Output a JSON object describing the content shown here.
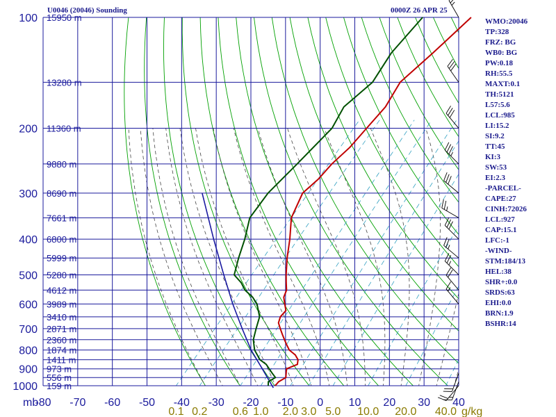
{
  "header": {
    "title": "U0046 (20046) Sounding",
    "time": "0000Z 26 APR 25"
  },
  "indices": [
    "WMO:20046",
    "TP:328",
    "FRZ: BG",
    "WB0: BG",
    "PW:0.18",
    "RH:55.5",
    "MAXT:0.1",
    "TH:5121",
    "L57:5.6",
    "LCL:985",
    "LI:15.2",
    "SI:9.2",
    "TT:45",
    "KI:3",
    "SW:53",
    "EI:2.3",
    "-PARCEL-",
    "CAPE:27",
    "CINH:72026",
    "LCL:927",
    "CAP:15.1",
    "LFC:-1",
    "-WIND-",
    "STM:184/13",
    "HEL:38",
    "SHR+:0.0",
    "SRDS:63",
    "EHI:0.0",
    "BRN:1.9",
    "BSHR:14"
  ],
  "colors": {
    "grid": "#1a1a9c",
    "dry_adiabat": "#00a000",
    "moist_adiabat": "#444444",
    "mixing_ratio": "#2f9fc0",
    "temperature": "#c00000",
    "dewpoint": "#005000",
    "parcel": "#1a1aa0",
    "axis_text": "#1a1a9c",
    "mixing_text": "#8a7a00"
  },
  "chart_data": {
    "type": "line",
    "title": "U0046 (20046) Sounding",
    "subtitle": "0000Z 26 APR 25",
    "xlabel": "",
    "ylabel": "mb",
    "xlim": [
      -80,
      40
    ],
    "ylim": [
      1000,
      100
    ],
    "y_log_scale": true,
    "grid": true,
    "x_ticks": [
      "-80",
      "-70",
      "-60",
      "-50",
      "-40",
      "-30",
      "-20",
      "-10",
      "0",
      "10",
      "20",
      "30",
      "40"
    ],
    "y_ticks": [
      "100",
      "200",
      "300",
      "400",
      "500",
      "600",
      "700",
      "800",
      "900",
      "1000"
    ],
    "height_labels": [
      {
        "p": 100,
        "label": "15950 m"
      },
      {
        "p": 150,
        "label": "13280 m"
      },
      {
        "p": 200,
        "label": "11360 m"
      },
      {
        "p": 250,
        "label": "9880 m"
      },
      {
        "p": 300,
        "label": "8690 m"
      },
      {
        "p": 350,
        "label": "7661 m"
      },
      {
        "p": 400,
        "label": "6800 m"
      },
      {
        "p": 450,
        "label": "5999 m"
      },
      {
        "p": 500,
        "label": "5280 m"
      },
      {
        "p": 550,
        "label": "4612 m"
      },
      {
        "p": 600,
        "label": "3989 m"
      },
      {
        "p": 650,
        "label": "3410 m"
      },
      {
        "p": 700,
        "label": "2871 m"
      },
      {
        "p": 750,
        "label": "2360 m"
      },
      {
        "p": 800,
        "label": "1874 m"
      },
      {
        "p": 850,
        "label": "1411 m"
      },
      {
        "p": 900,
        "label": "973 m"
      },
      {
        "p": 950,
        "label": "556 m"
      },
      {
        "p": 1000,
        "label": "159 m"
      }
    ],
    "mixing_ratio_labels": [
      "0.1",
      "0.2",
      "0.6",
      "1.0",
      "2.0",
      "3.0",
      "5.0",
      "10.0",
      "20.0",
      "40.0"
    ],
    "mixing_ratio_unit": "g/kg",
    "series": [
      {
        "key": "temperature",
        "points": [
          [
            1000,
            -13
          ],
          [
            975,
            -13
          ],
          [
            950,
            -12
          ],
          [
            925,
            -13
          ],
          [
            900,
            -14
          ],
          [
            875,
            -12
          ],
          [
            850,
            -13
          ],
          [
            825,
            -15
          ],
          [
            800,
            -18
          ],
          [
            775,
            -20
          ],
          [
            750,
            -22
          ],
          [
            725,
            -24
          ],
          [
            700,
            -26
          ],
          [
            675,
            -28
          ],
          [
            650,
            -29
          ],
          [
            625,
            -29
          ],
          [
            600,
            -31
          ],
          [
            575,
            -33
          ],
          [
            550,
            -34
          ],
          [
            525,
            -36
          ],
          [
            500,
            -38
          ],
          [
            450,
            -42
          ],
          [
            400,
            -46
          ],
          [
            350,
            -51
          ],
          [
            300,
            -54
          ],
          [
            275,
            -53
          ],
          [
            250,
            -53
          ],
          [
            225,
            -52
          ],
          [
            200,
            -52
          ],
          [
            175,
            -52
          ],
          [
            150,
            -54
          ],
          [
            125,
            -52
          ],
          [
            100,
            -50
          ]
        ]
      },
      {
        "key": "dewpoint",
        "points": [
          [
            1000,
            -15
          ],
          [
            975,
            -16
          ],
          [
            950,
            -15
          ],
          [
            925,
            -17
          ],
          [
            900,
            -19
          ],
          [
            875,
            -21
          ],
          [
            850,
            -24
          ],
          [
            800,
            -28
          ],
          [
            750,
            -31
          ],
          [
            700,
            -33
          ],
          [
            650,
            -35
          ],
          [
            600,
            -39
          ],
          [
            575,
            -42
          ],
          [
            550,
            -46
          ],
          [
            525,
            -49
          ],
          [
            500,
            -53
          ],
          [
            450,
            -56
          ],
          [
            400,
            -59
          ],
          [
            350,
            -63
          ],
          [
            300,
            -64
          ],
          [
            250,
            -63
          ],
          [
            200,
            -62
          ],
          [
            175,
            -64
          ],
          [
            150,
            -62
          ],
          [
            125,
            -64
          ],
          [
            100,
            -64
          ]
        ]
      },
      {
        "key": "parcel",
        "points": [
          [
            1013,
            -13
          ],
          [
            900,
            -21
          ],
          [
            800,
            -29
          ],
          [
            700,
            -37
          ],
          [
            600,
            -46
          ],
          [
            500,
            -56
          ],
          [
            400,
            -68
          ],
          [
            300,
            -83
          ]
        ]
      }
    ],
    "wind_barbs": [
      {
        "p": 100,
        "dir": 330,
        "spd": 25
      },
      {
        "p": 150,
        "dir": 325,
        "spd": 30
      },
      {
        "p": 200,
        "dir": 320,
        "spd": 30
      },
      {
        "p": 250,
        "dir": 315,
        "spd": 35
      },
      {
        "p": 300,
        "dir": 310,
        "spd": 30
      },
      {
        "p": 350,
        "dir": 300,
        "spd": 25
      },
      {
        "p": 400,
        "dir": 315,
        "spd": 30
      },
      {
        "p": 450,
        "dir": 310,
        "spd": 25
      },
      {
        "p": 500,
        "dir": 315,
        "spd": 25
      },
      {
        "p": 550,
        "dir": 320,
        "spd": 20
      },
      {
        "p": 600,
        "dir": 320,
        "spd": 15
      },
      {
        "p": 925,
        "dir": 200,
        "spd": 20
      },
      {
        "p": 975,
        "dir": 200,
        "spd": 15
      },
      {
        "p": 1000,
        "dir": 220,
        "spd": 20
      }
    ]
  }
}
